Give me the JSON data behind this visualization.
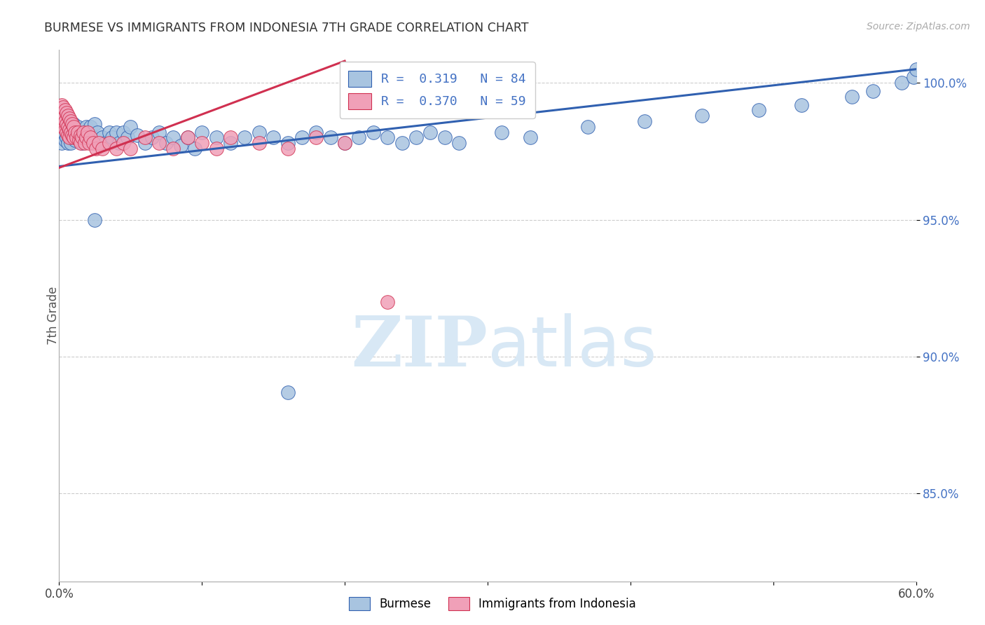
{
  "title": "BURMESE VS IMMIGRANTS FROM INDONESIA 7TH GRADE CORRELATION CHART",
  "source": "Source: ZipAtlas.com",
  "xlabel_blue": "Burmese",
  "xlabel_pink": "Immigrants from Indonesia",
  "ylabel": "7th Grade",
  "R_blue": 0.319,
  "N_blue": 84,
  "R_pink": 0.37,
  "N_pink": 59,
  "xlim": [
    0.0,
    0.6
  ],
  "ylim": [
    0.818,
    1.012
  ],
  "yticks": [
    0.85,
    0.9,
    0.95,
    1.0
  ],
  "ytick_labels": [
    "85.0%",
    "90.0%",
    "95.0%",
    "100.0%"
  ],
  "xticks": [
    0.0,
    0.1,
    0.2,
    0.3,
    0.4,
    0.5,
    0.6
  ],
  "xtick_labels": [
    "0.0%",
    "",
    "",
    "",
    "",
    "",
    "60.0%"
  ],
  "color_blue": "#a8c4e0",
  "color_pink": "#f0a0b8",
  "trendline_blue": "#3060b0",
  "trendline_pink": "#d03050",
  "watermark_zip": "ZIP",
  "watermark_atlas": "atlas",
  "background_color": "#ffffff",
  "grid_color": "#cccccc",
  "axis_color": "#aaaaaa",
  "title_color": "#333333",
  "label_color": "#4472c4",
  "watermark_color": "#d8e8f5",
  "trend_blue_x0": 0.0,
  "trend_blue_y0": 0.9695,
  "trend_blue_x1": 0.6,
  "trend_blue_y1": 1.005,
  "trend_pink_x0": 0.0,
  "trend_pink_y0": 0.969,
  "trend_pink_x1": 0.2,
  "trend_pink_y1": 1.008,
  "blue_x": [
    0.001,
    0.002,
    0.002,
    0.003,
    0.003,
    0.004,
    0.004,
    0.005,
    0.005,
    0.006,
    0.006,
    0.007,
    0.007,
    0.008,
    0.008,
    0.009,
    0.01,
    0.01,
    0.011,
    0.012,
    0.013,
    0.014,
    0.015,
    0.016,
    0.017,
    0.018,
    0.019,
    0.02,
    0.021,
    0.022,
    0.024,
    0.025,
    0.027,
    0.03,
    0.032,
    0.035,
    0.037,
    0.04,
    0.042,
    0.045,
    0.048,
    0.05,
    0.055,
    0.06,
    0.065,
    0.07,
    0.075,
    0.08,
    0.085,
    0.09,
    0.095,
    0.1,
    0.11,
    0.12,
    0.13,
    0.14,
    0.15,
    0.16,
    0.17,
    0.18,
    0.19,
    0.2,
    0.21,
    0.22,
    0.23,
    0.24,
    0.25,
    0.26,
    0.27,
    0.28,
    0.31,
    0.33,
    0.37,
    0.41,
    0.45,
    0.49,
    0.52,
    0.555,
    0.57,
    0.59,
    0.598,
    0.6,
    0.16,
    0.025
  ],
  "blue_y": [
    0.98,
    0.982,
    0.978,
    0.985,
    0.982,
    0.979,
    0.985,
    0.98,
    0.987,
    0.982,
    0.978,
    0.985,
    0.98,
    0.982,
    0.978,
    0.98,
    0.982,
    0.985,
    0.979,
    0.981,
    0.984,
    0.98,
    0.982,
    0.978,
    0.98,
    0.982,
    0.984,
    0.979,
    0.981,
    0.984,
    0.98,
    0.985,
    0.982,
    0.98,
    0.978,
    0.982,
    0.98,
    0.982,
    0.978,
    0.982,
    0.98,
    0.984,
    0.981,
    0.978,
    0.98,
    0.982,
    0.978,
    0.98,
    0.977,
    0.98,
    0.976,
    0.982,
    0.98,
    0.978,
    0.98,
    0.982,
    0.98,
    0.978,
    0.98,
    0.982,
    0.98,
    0.978,
    0.98,
    0.982,
    0.98,
    0.978,
    0.98,
    0.982,
    0.98,
    0.978,
    0.982,
    0.98,
    0.984,
    0.986,
    0.988,
    0.99,
    0.992,
    0.995,
    0.997,
    1.0,
    1.002,
    1.005,
    0.887,
    0.95
  ],
  "pink_x": [
    0.001,
    0.001,
    0.002,
    0.002,
    0.002,
    0.003,
    0.003,
    0.003,
    0.004,
    0.004,
    0.004,
    0.005,
    0.005,
    0.005,
    0.006,
    0.006,
    0.006,
    0.007,
    0.007,
    0.007,
    0.008,
    0.008,
    0.009,
    0.009,
    0.01,
    0.01,
    0.011,
    0.012,
    0.013,
    0.014,
    0.015,
    0.015,
    0.016,
    0.017,
    0.018,
    0.019,
    0.02,
    0.021,
    0.022,
    0.024,
    0.026,
    0.028,
    0.03,
    0.035,
    0.04,
    0.045,
    0.05,
    0.06,
    0.07,
    0.08,
    0.09,
    0.1,
    0.11,
    0.12,
    0.14,
    0.16,
    0.18,
    0.2,
    0.23
  ],
  "pink_y": [
    0.99,
    0.987,
    0.992,
    0.988,
    0.985,
    0.991,
    0.987,
    0.984,
    0.99,
    0.986,
    0.983,
    0.989,
    0.985,
    0.982,
    0.988,
    0.984,
    0.981,
    0.987,
    0.983,
    0.98,
    0.986,
    0.982,
    0.985,
    0.981,
    0.984,
    0.98,
    0.982,
    0.98,
    0.982,
    0.979,
    0.981,
    0.978,
    0.98,
    0.982,
    0.978,
    0.98,
    0.982,
    0.978,
    0.98,
    0.978,
    0.976,
    0.978,
    0.976,
    0.978,
    0.976,
    0.978,
    0.976,
    0.98,
    0.978,
    0.976,
    0.98,
    0.978,
    0.976,
    0.98,
    0.978,
    0.976,
    0.98,
    0.978,
    0.92
  ]
}
